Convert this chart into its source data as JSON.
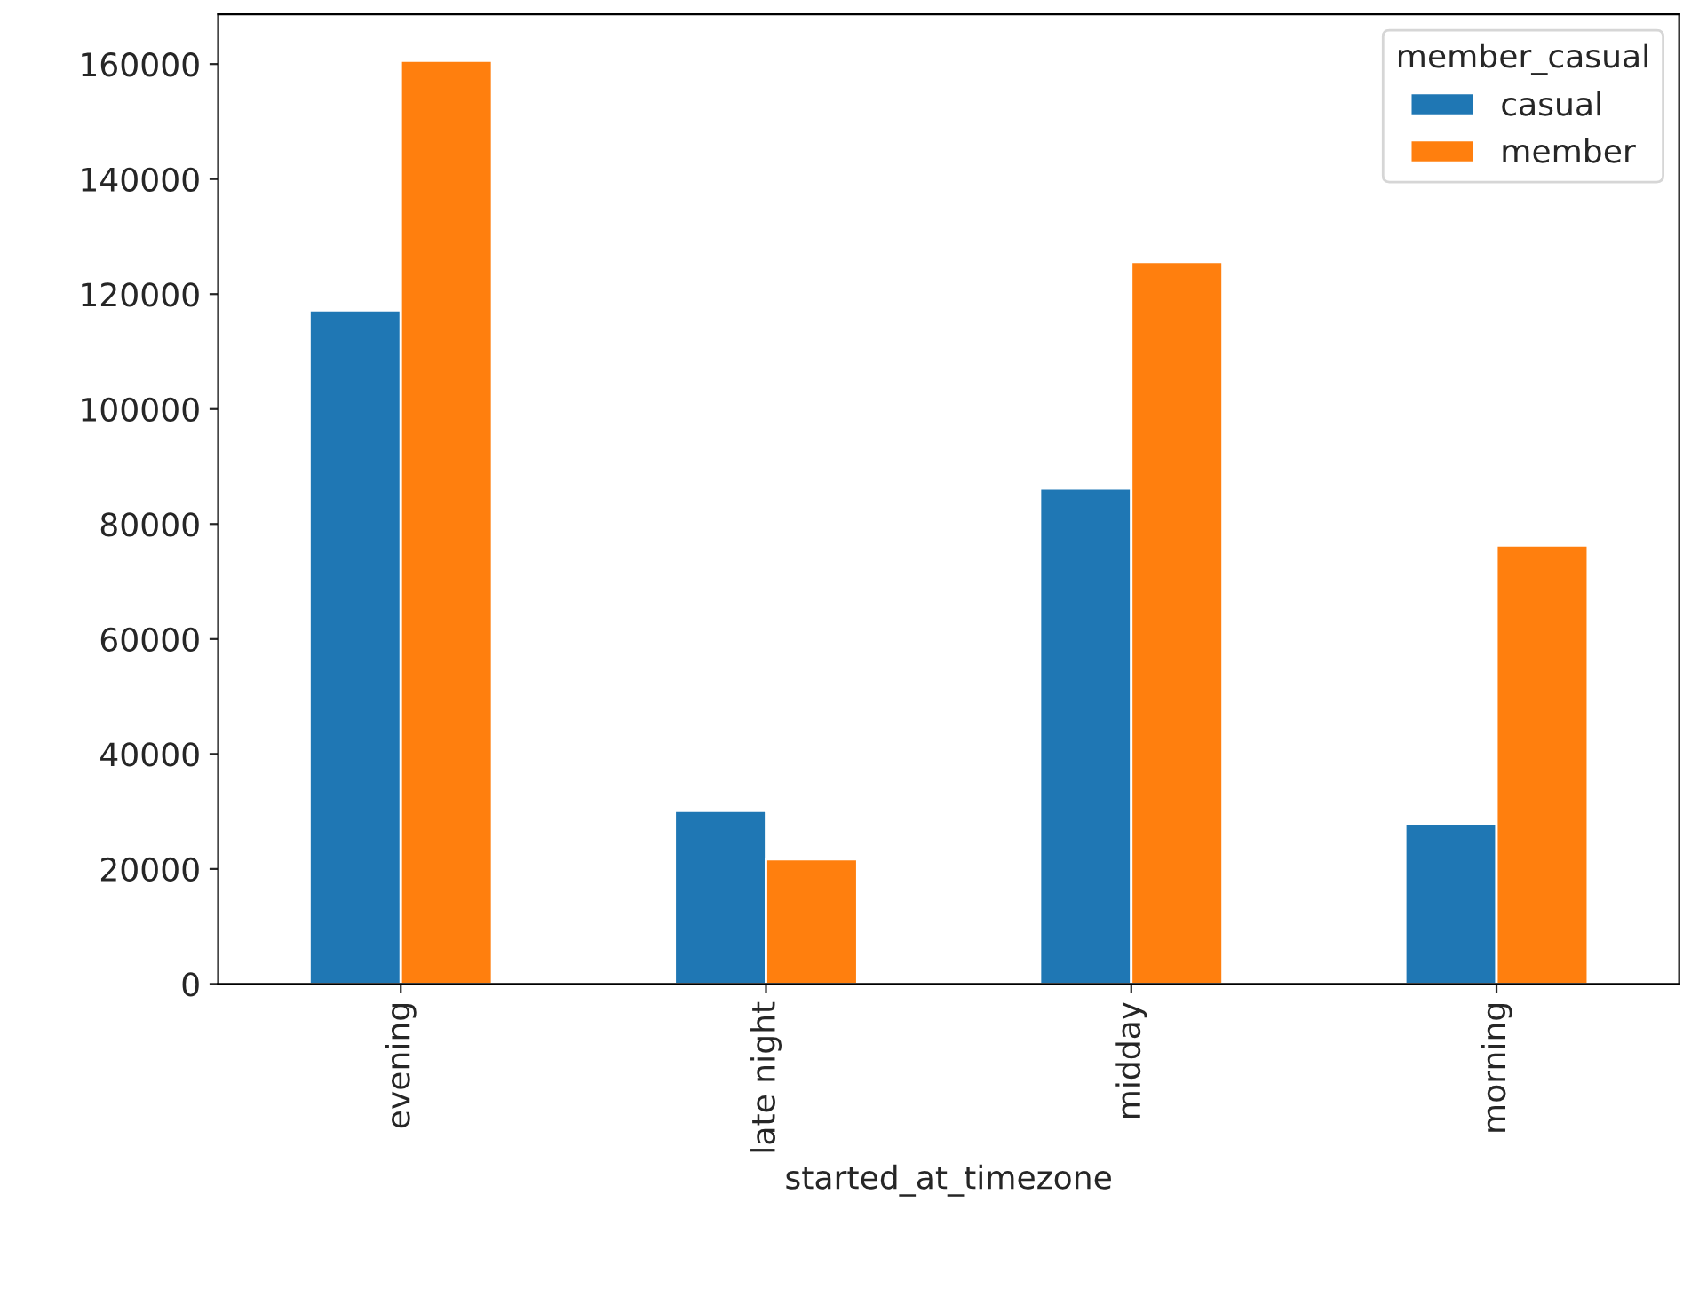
{
  "chart_data": {
    "type": "bar",
    "xlabel": "started_at_timezone",
    "legend_title": "member_casual",
    "categories": [
      "evening",
      "late night",
      "midday",
      "morning"
    ],
    "series": [
      {
        "name": "casual",
        "color": "#1f77b4",
        "values": [
          117200,
          30100,
          86200,
          27900
        ]
      },
      {
        "name": "member",
        "color": "#ff7f0e",
        "values": [
          160600,
          21700,
          125600,
          76300
        ]
      }
    ],
    "ylim": [
      0,
      168650
    ],
    "yticks": [
      0,
      20000,
      40000,
      60000,
      80000,
      100000,
      120000,
      140000,
      160000
    ],
    "grid": false,
    "legend": "top right"
  }
}
